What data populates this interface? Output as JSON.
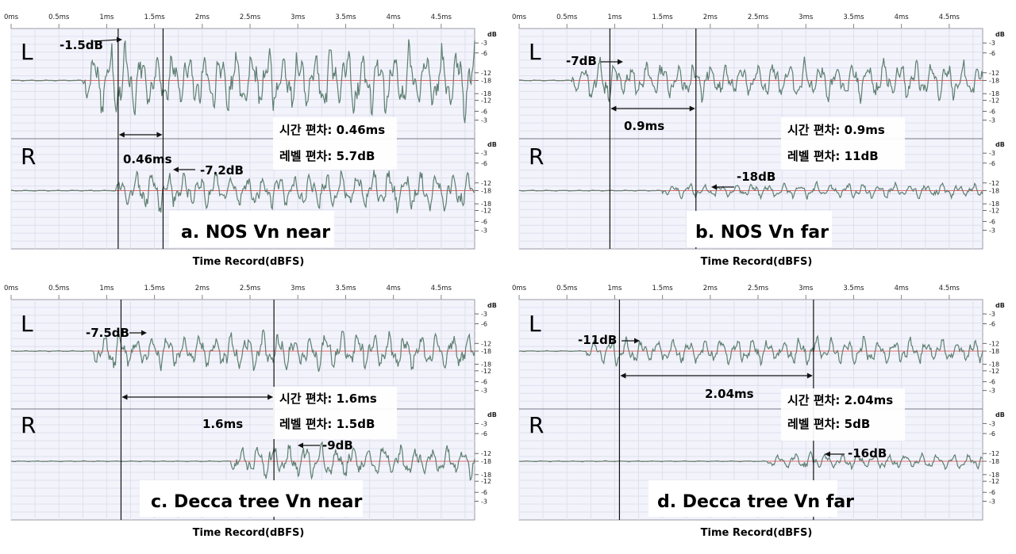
{
  "panels": [
    {
      "caption": "a. NOS Vn near",
      "xlabel": "Time Record(dBFS)",
      "L_label": "L",
      "R_label": "R",
      "ann_L": "-1.5dB",
      "ann_R": "-7.2dB",
      "diff_label": "0.46ms",
      "time_dev": "시간 편차: 0.46ms",
      "level_dev": "레벨 편차: 5.7dB"
    },
    {
      "caption": "b. NOS Vn far",
      "xlabel": "Time Record(dBFS)",
      "L_label": "L",
      "R_label": "R",
      "ann_L": "-7dB",
      "ann_R": "-18dB",
      "diff_label": "0.9ms",
      "time_dev": "시간 편차: 0.9ms",
      "level_dev": "레벨 편차: 11dB"
    },
    {
      "caption": "c. Decca tree Vn near",
      "xlabel": "Time Record(dBFS)",
      "L_label": "L",
      "R_label": "R",
      "ann_L": "-7.5dB",
      "ann_R": "-9dB",
      "diff_label": "1.6ms",
      "time_dev": "시간 편차: 1.6ms",
      "level_dev": "레벨 편차: 1.5dB"
    },
    {
      "caption": "d. Decca tree Vn far",
      "xlabel": "Time Record(dBFS)",
      "L_label": "L",
      "R_label": "R",
      "ann_L": "-11dB",
      "ann_R": "-16dB",
      "diff_label": "2.04ms",
      "time_dev": "시간 편차: 2.04ms",
      "level_dev": "레벨 편차: 5dB"
    }
  ],
  "chart_data": [
    {
      "type": "line",
      "title": "a. NOS Vn near",
      "xlabel": "Time Record(dBFS)",
      "x_ticks": [
        "0ms",
        "0.5ms",
        "1ms",
        "1.5ms",
        "2ms",
        "2.5ms",
        "3ms",
        "3.5ms",
        "4ms",
        "4.5ms"
      ],
      "y_unit": "dB",
      "y_ticks": [
        "-3",
        "-6",
        "-12",
        "-18",
        "-18",
        "-12",
        "-6",
        "-3"
      ],
      "xlim": [
        0,
        4.85
      ],
      "markers": {
        "L_peak_ms": 1.12,
        "R_peak_ms": 1.59
      },
      "channels": [
        {
          "name": "L",
          "peak_db": -1.5,
          "onset_ms": 0.75
        },
        {
          "name": "R",
          "peak_db": -7.2,
          "onset_ms": 1.1
        }
      ],
      "time_difference_ms": 0.46,
      "level_difference_db": 5.7
    },
    {
      "type": "line",
      "title": "b. NOS Vn far",
      "xlabel": "Time Record(dBFS)",
      "x_ticks": [
        "0ms",
        "0.5ms",
        "1ms",
        "1.5ms",
        "2ms",
        "2.5ms",
        "3ms",
        "3.5ms",
        "4ms",
        "4.5ms"
      ],
      "y_unit": "dB",
      "y_ticks": [
        "-3",
        "-6",
        "-12",
        "-18",
        "-18",
        "-12",
        "-6",
        "-3"
      ],
      "xlim": [
        0,
        4.85
      ],
      "markers": {
        "L_peak_ms": 0.95,
        "R_peak_ms": 1.85
      },
      "channels": [
        {
          "name": "L",
          "peak_db": -7,
          "onset_ms": 0.55
        },
        {
          "name": "R",
          "peak_db": -18,
          "onset_ms": 1.5
        }
      ],
      "time_difference_ms": 0.9,
      "level_difference_db": 11
    },
    {
      "type": "line",
      "title": "c. Decca tree Vn near",
      "xlabel": "Time Record(dBFS)",
      "x_ticks": [
        "0ms",
        "0.5ms",
        "1ms",
        "1.5ms",
        "2ms",
        "2.5ms",
        "3ms",
        "3.5ms",
        "4ms",
        "4.5ms"
      ],
      "y_unit": "dB",
      "y_ticks": [
        "-3",
        "-6",
        "-12",
        "-18",
        "-18",
        "-12",
        "-6",
        "-3"
      ],
      "xlim": [
        0,
        4.85
      ],
      "markers": {
        "L_peak_ms": 1.15,
        "R_peak_ms": 2.75
      },
      "channels": [
        {
          "name": "L",
          "peak_db": -7.5,
          "onset_ms": 0.85
        },
        {
          "name": "R",
          "peak_db": -9,
          "onset_ms": 2.3
        }
      ],
      "time_difference_ms": 1.6,
      "level_difference_db": 1.5
    },
    {
      "type": "line",
      "title": "d. Decca tree Vn far",
      "xlabel": "Time Record(dBFS)",
      "x_ticks": [
        "0ms",
        "0.5ms",
        "1ms",
        "1.5ms",
        "2ms",
        "2.5ms",
        "3ms",
        "3.5ms",
        "4ms",
        "4.5ms"
      ],
      "y_unit": "dB",
      "y_ticks": [
        "-3",
        "-6",
        "-12",
        "-18",
        "-18",
        "-12",
        "-6",
        "-3"
      ],
      "xlim": [
        0,
        4.85
      ],
      "markers": {
        "L_peak_ms": 1.05,
        "R_peak_ms": 3.08
      },
      "channels": [
        {
          "name": "L",
          "peak_db": -11,
          "onset_ms": 0.7
        },
        {
          "name": "R",
          "peak_db": -16,
          "onset_ms": 2.6
        }
      ],
      "time_difference_ms": 2.04,
      "level_difference_db": 5
    }
  ]
}
